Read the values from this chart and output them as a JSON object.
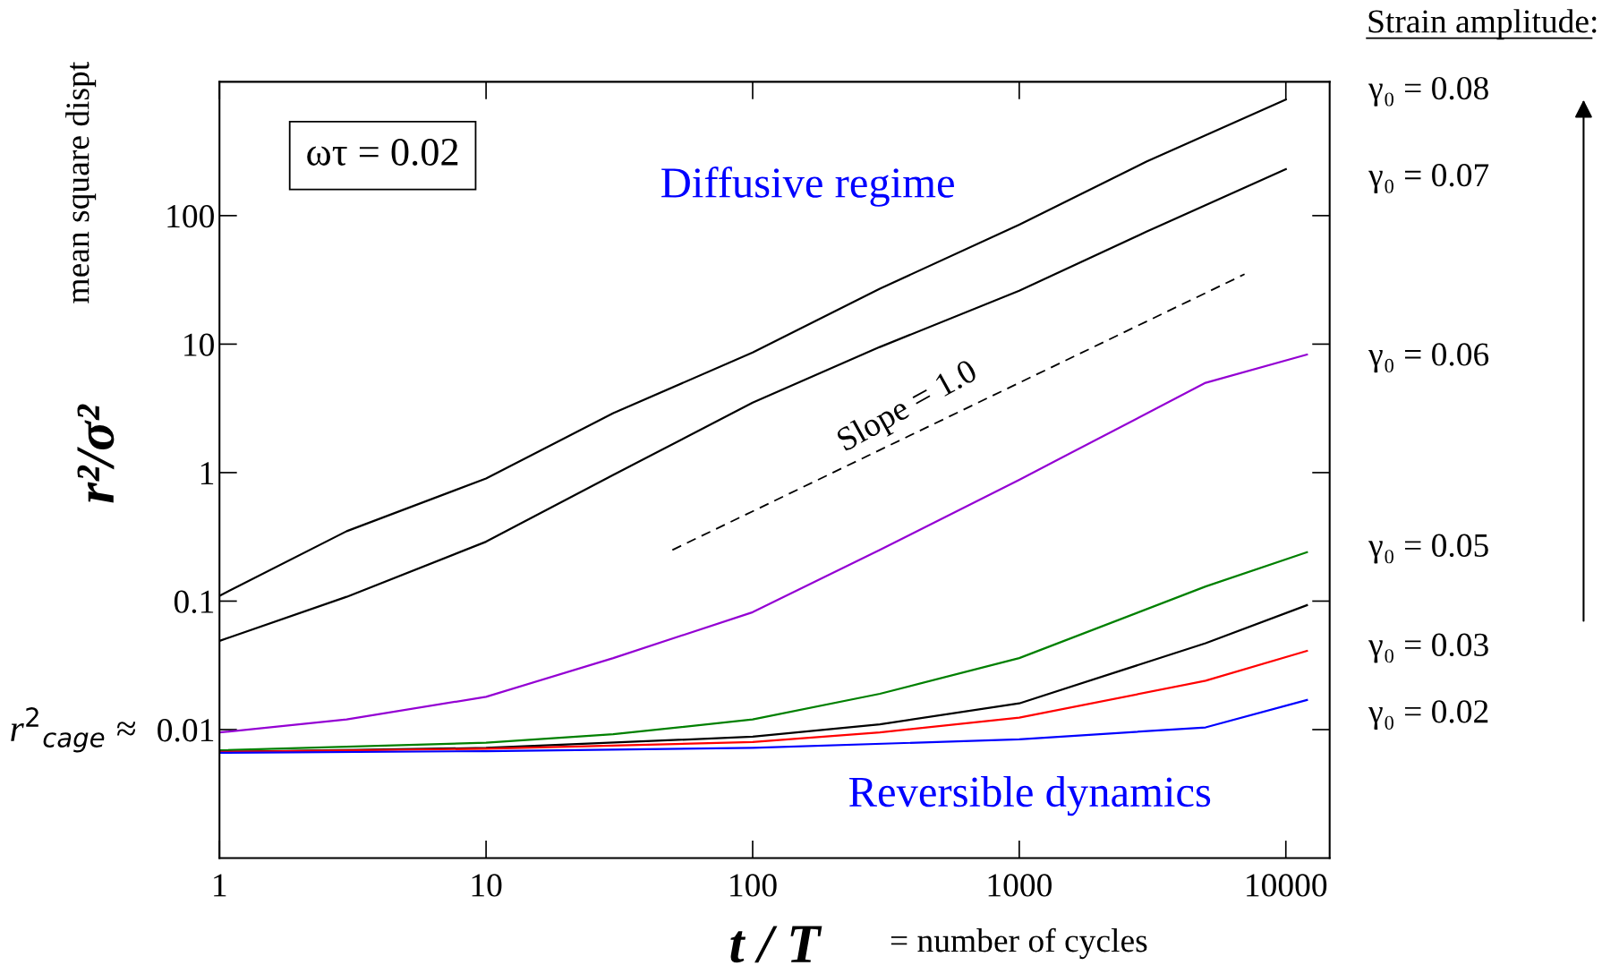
{
  "chart_data": {
    "type": "line",
    "xlabel": "t / T",
    "ylabel": "r²/σ²",
    "log": "xy",
    "grid": false,
    "xlim": [
      1,
      14600
    ],
    "xticks": [
      1,
      10,
      100,
      1000,
      10000
    ],
    "ylim": [
      0.001,
      1100
    ],
    "yticks": [
      0.01,
      0.1,
      1,
      10,
      100
    ],
    "series": [
      {
        "color": "#000000",
        "x": [
          1,
          3,
          10,
          30,
          100,
          300,
          1000,
          3000,
          10000
        ],
        "values": [
          0.11,
          0.35,
          0.9,
          2.9,
          8.6,
          27,
          85,
          263,
          800
        ]
      },
      {
        "color": "#000000",
        "x": [
          1,
          3,
          10,
          30,
          100,
          300,
          1000,
          3000,
          10000
        ],
        "values": [
          0.049,
          0.108,
          0.29,
          0.96,
          3.5,
          9.5,
          26,
          75,
          230
        ]
      },
      {
        "color": "#9400d3",
        "x": [
          1,
          3,
          10,
          30,
          100,
          300,
          1000,
          5000,
          12000
        ],
        "values": [
          0.0095,
          0.012,
          0.018,
          0.036,
          0.082,
          0.25,
          0.88,
          5,
          8.3
        ]
      },
      {
        "color": "#008000",
        "x": [
          1,
          10,
          30,
          100,
          300,
          1000,
          5000,
          12000
        ],
        "values": [
          0.0069,
          0.0079,
          0.0092,
          0.012,
          0.019,
          0.036,
          0.13,
          0.24
        ]
      },
      {
        "color": "#000000",
        "x": [
          1,
          10,
          100,
          300,
          1000,
          5000,
          12000
        ],
        "values": [
          0.0067,
          0.0072,
          0.0088,
          0.011,
          0.016,
          0.047,
          0.093
        ]
      },
      {
        "color": "#ff0000",
        "x": [
          1,
          10,
          100,
          300,
          1000,
          5000,
          12000
        ],
        "values": [
          0.0067,
          0.0071,
          0.008,
          0.0095,
          0.0124,
          0.024,
          0.041
        ]
      },
      {
        "color": "#0000ff",
        "x": [
          1,
          10,
          100,
          1000,
          5000,
          12000
        ],
        "values": [
          0.0066,
          0.0068,
          0.0072,
          0.0084,
          0.0104,
          0.017
        ]
      },
      {
        "color": "#000000",
        "line_style": "dashed",
        "x": [
          50,
          7000
        ],
        "values": [
          0.25,
          35
        ]
      }
    ],
    "annotations": [
      "mean square dispt",
      "= number of cycles",
      "r$^{2}$$_{cage}$ ≈",
      "Strain amplitude:",
      "ωτ = 0.02",
      "Diffusive regime",
      "Reversible dynamics",
      "Slope = 1.0",
      "γ₀ = 0.08",
      "γ₀ = 0.07",
      "γ₀ = 0.06",
      "γ₀ = 0.05",
      "γ₀ = 0.03",
      "γ₀ = 0.02"
    ]
  }
}
